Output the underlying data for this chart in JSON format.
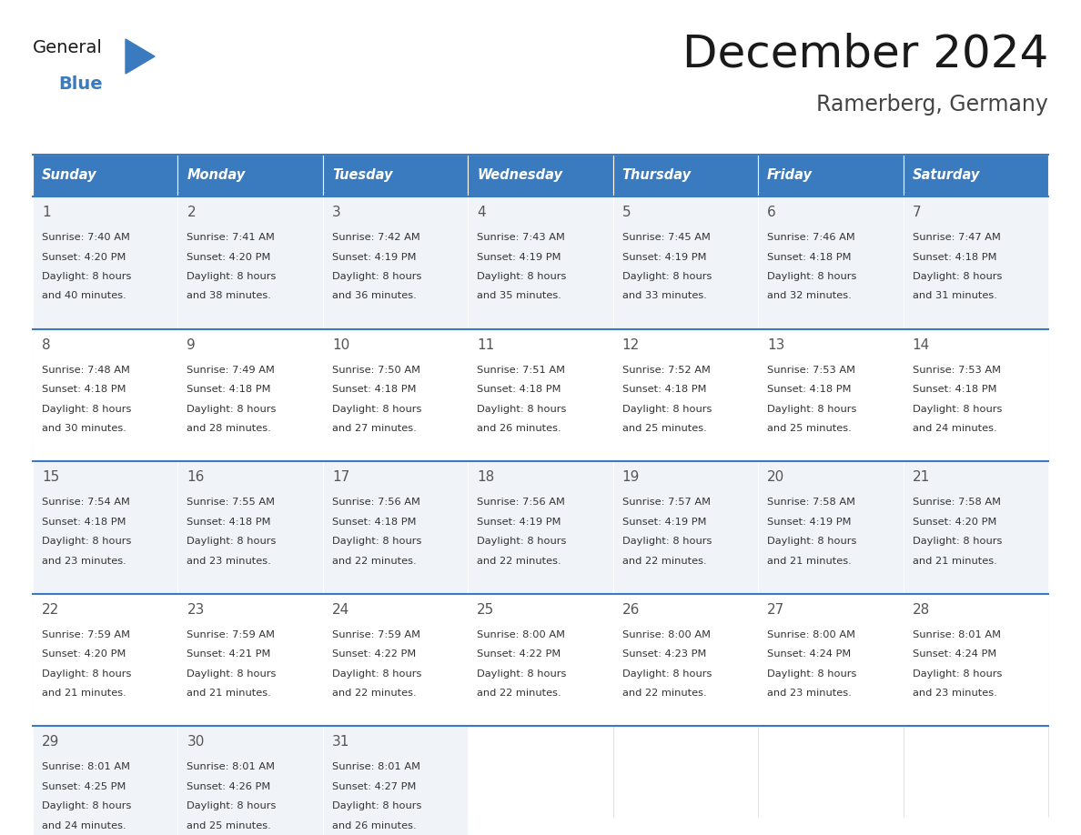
{
  "title": "December 2024",
  "subtitle": "Ramerberg, Germany",
  "header_color": "#3a7abf",
  "header_text_color": "#ffffff",
  "cell_bg_even": "#f0f4f8",
  "cell_bg_odd": "#ffffff",
  "weekdays": [
    "Sunday",
    "Monday",
    "Tuesday",
    "Wednesday",
    "Thursday",
    "Friday",
    "Saturday"
  ],
  "days": [
    {
      "day": 1,
      "col": 0,
      "row": 0,
      "sunrise": "7:40 AM",
      "sunset": "4:20 PM",
      "dl_h": "8 hours",
      "dl_m": "40 minutes."
    },
    {
      "day": 2,
      "col": 1,
      "row": 0,
      "sunrise": "7:41 AM",
      "sunset": "4:20 PM",
      "dl_h": "8 hours",
      "dl_m": "38 minutes."
    },
    {
      "day": 3,
      "col": 2,
      "row": 0,
      "sunrise": "7:42 AM",
      "sunset": "4:19 PM",
      "dl_h": "8 hours",
      "dl_m": "36 minutes."
    },
    {
      "day": 4,
      "col": 3,
      "row": 0,
      "sunrise": "7:43 AM",
      "sunset": "4:19 PM",
      "dl_h": "8 hours",
      "dl_m": "35 minutes."
    },
    {
      "day": 5,
      "col": 4,
      "row": 0,
      "sunrise": "7:45 AM",
      "sunset": "4:19 PM",
      "dl_h": "8 hours",
      "dl_m": "33 minutes."
    },
    {
      "day": 6,
      "col": 5,
      "row": 0,
      "sunrise": "7:46 AM",
      "sunset": "4:18 PM",
      "dl_h": "8 hours",
      "dl_m": "32 minutes."
    },
    {
      "day": 7,
      "col": 6,
      "row": 0,
      "sunrise": "7:47 AM",
      "sunset": "4:18 PM",
      "dl_h": "8 hours",
      "dl_m": "31 minutes."
    },
    {
      "day": 8,
      "col": 0,
      "row": 1,
      "sunrise": "7:48 AM",
      "sunset": "4:18 PM",
      "dl_h": "8 hours",
      "dl_m": "30 minutes."
    },
    {
      "day": 9,
      "col": 1,
      "row": 1,
      "sunrise": "7:49 AM",
      "sunset": "4:18 PM",
      "dl_h": "8 hours",
      "dl_m": "28 minutes."
    },
    {
      "day": 10,
      "col": 2,
      "row": 1,
      "sunrise": "7:50 AM",
      "sunset": "4:18 PM",
      "dl_h": "8 hours",
      "dl_m": "27 minutes."
    },
    {
      "day": 11,
      "col": 3,
      "row": 1,
      "sunrise": "7:51 AM",
      "sunset": "4:18 PM",
      "dl_h": "8 hours",
      "dl_m": "26 minutes."
    },
    {
      "day": 12,
      "col": 4,
      "row": 1,
      "sunrise": "7:52 AM",
      "sunset": "4:18 PM",
      "dl_h": "8 hours",
      "dl_m": "25 minutes."
    },
    {
      "day": 13,
      "col": 5,
      "row": 1,
      "sunrise": "7:53 AM",
      "sunset": "4:18 PM",
      "dl_h": "8 hours",
      "dl_m": "25 minutes."
    },
    {
      "day": 14,
      "col": 6,
      "row": 1,
      "sunrise": "7:53 AM",
      "sunset": "4:18 PM",
      "dl_h": "8 hours",
      "dl_m": "24 minutes."
    },
    {
      "day": 15,
      "col": 0,
      "row": 2,
      "sunrise": "7:54 AM",
      "sunset": "4:18 PM",
      "dl_h": "8 hours",
      "dl_m": "23 minutes."
    },
    {
      "day": 16,
      "col": 1,
      "row": 2,
      "sunrise": "7:55 AM",
      "sunset": "4:18 PM",
      "dl_h": "8 hours",
      "dl_m": "23 minutes."
    },
    {
      "day": 17,
      "col": 2,
      "row": 2,
      "sunrise": "7:56 AM",
      "sunset": "4:18 PM",
      "dl_h": "8 hours",
      "dl_m": "22 minutes."
    },
    {
      "day": 18,
      "col": 3,
      "row": 2,
      "sunrise": "7:56 AM",
      "sunset": "4:19 PM",
      "dl_h": "8 hours",
      "dl_m": "22 minutes."
    },
    {
      "day": 19,
      "col": 4,
      "row": 2,
      "sunrise": "7:57 AM",
      "sunset": "4:19 PM",
      "dl_h": "8 hours",
      "dl_m": "22 minutes."
    },
    {
      "day": 20,
      "col": 5,
      "row": 2,
      "sunrise": "7:58 AM",
      "sunset": "4:19 PM",
      "dl_h": "8 hours",
      "dl_m": "21 minutes."
    },
    {
      "day": 21,
      "col": 6,
      "row": 2,
      "sunrise": "7:58 AM",
      "sunset": "4:20 PM",
      "dl_h": "8 hours",
      "dl_m": "21 minutes."
    },
    {
      "day": 22,
      "col": 0,
      "row": 3,
      "sunrise": "7:59 AM",
      "sunset": "4:20 PM",
      "dl_h": "8 hours",
      "dl_m": "21 minutes."
    },
    {
      "day": 23,
      "col": 1,
      "row": 3,
      "sunrise": "7:59 AM",
      "sunset": "4:21 PM",
      "dl_h": "8 hours",
      "dl_m": "21 minutes."
    },
    {
      "day": 24,
      "col": 2,
      "row": 3,
      "sunrise": "7:59 AM",
      "sunset": "4:22 PM",
      "dl_h": "8 hours",
      "dl_m": "22 minutes."
    },
    {
      "day": 25,
      "col": 3,
      "row": 3,
      "sunrise": "8:00 AM",
      "sunset": "4:22 PM",
      "dl_h": "8 hours",
      "dl_m": "22 minutes."
    },
    {
      "day": 26,
      "col": 4,
      "row": 3,
      "sunrise": "8:00 AM",
      "sunset": "4:23 PM",
      "dl_h": "8 hours",
      "dl_m": "22 minutes."
    },
    {
      "day": 27,
      "col": 5,
      "row": 3,
      "sunrise": "8:00 AM",
      "sunset": "4:24 PM",
      "dl_h": "8 hours",
      "dl_m": "23 minutes."
    },
    {
      "day": 28,
      "col": 6,
      "row": 3,
      "sunrise": "8:01 AM",
      "sunset": "4:24 PM",
      "dl_h": "8 hours",
      "dl_m": "23 minutes."
    },
    {
      "day": 29,
      "col": 0,
      "row": 4,
      "sunrise": "8:01 AM",
      "sunset": "4:25 PM",
      "dl_h": "8 hours",
      "dl_m": "24 minutes."
    },
    {
      "day": 30,
      "col": 1,
      "row": 4,
      "sunrise": "8:01 AM",
      "sunset": "4:26 PM",
      "dl_h": "8 hours",
      "dl_m": "25 minutes."
    },
    {
      "day": 31,
      "col": 2,
      "row": 4,
      "sunrise": "8:01 AM",
      "sunset": "4:27 PM",
      "dl_h": "8 hours",
      "dl_m": "26 minutes."
    }
  ],
  "logo_general_color": "#1a1a1a",
  "logo_blue_color": "#3a7abf",
  "n_rows": 5
}
